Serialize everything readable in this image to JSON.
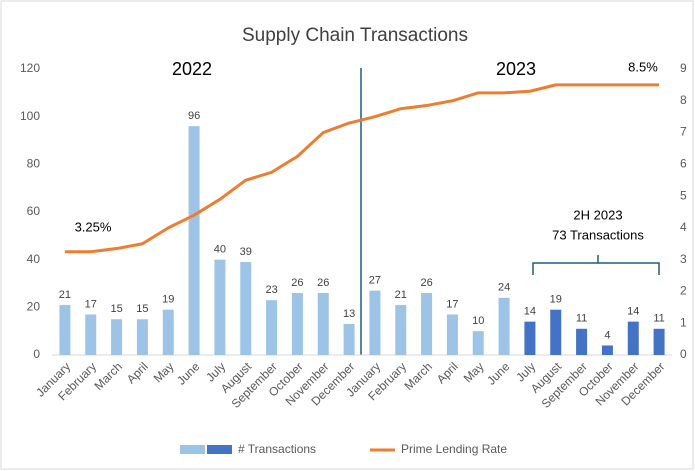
{
  "chart_data": {
    "type": "bar-line",
    "title": "Supply Chain Transactions",
    "categories": [
      "January",
      "February",
      "March",
      "April",
      "May",
      "June",
      "July",
      "August",
      "September",
      "October",
      "November",
      "December",
      "January",
      "February",
      "March",
      "April",
      "May",
      "June",
      "July",
      "August",
      "September",
      "October",
      "November",
      "December"
    ],
    "series": [
      {
        "name": "# Transactions",
        "type": "bar",
        "colors": [
          "#9dc3e6",
          "#9dc3e6",
          "#9dc3e6",
          "#9dc3e6",
          "#9dc3e6",
          "#9dc3e6",
          "#9dc3e6",
          "#9dc3e6",
          "#9dc3e6",
          "#9dc3e6",
          "#9dc3e6",
          "#9dc3e6",
          "#9dc3e6",
          "#9dc3e6",
          "#9dc3e6",
          "#9dc3e6",
          "#9dc3e6",
          "#9dc3e6",
          "#4472c4",
          "#4472c4",
          "#4472c4",
          "#4472c4",
          "#4472c4",
          "#4472c4"
        ],
        "values": [
          21,
          17,
          15,
          15,
          19,
          96,
          40,
          39,
          23,
          26,
          26,
          13,
          27,
          21,
          26,
          17,
          10,
          24,
          14,
          19,
          11,
          4,
          14,
          11
        ]
      },
      {
        "name": "Prime Lending Rate",
        "type": "line",
        "axis": "y2",
        "color": "#ed7d31",
        "values": [
          3.25,
          3.25,
          3.35,
          3.5,
          4.0,
          4.4,
          4.9,
          5.5,
          5.75,
          6.25,
          7.0,
          7.3,
          7.5,
          7.75,
          7.85,
          8.0,
          8.25,
          8.25,
          8.3,
          8.5,
          8.5,
          8.5,
          8.5,
          8.5
        ]
      }
    ],
    "ylim": [
      0,
      120
    ],
    "yticks": [
      0,
      20,
      40,
      60,
      80,
      100,
      120
    ],
    "y2lim": [
      0,
      9
    ],
    "y2ticks": [
      0,
      1,
      2,
      3,
      4,
      5,
      6,
      7,
      8,
      9
    ],
    "grid": false,
    "annotations": {
      "year1": "2022",
      "year2": "2023",
      "start_rate": "3.25%",
      "end_rate": "8.5%",
      "group_title": "2H 2023",
      "group_total": "73 Transactions"
    },
    "legend": "bottom"
  }
}
